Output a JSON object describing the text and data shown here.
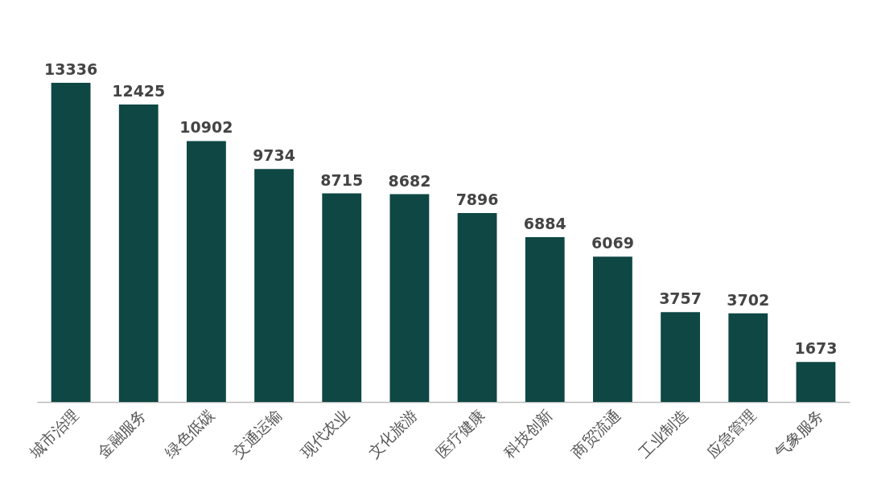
{
  "chart_data": {
    "type": "bar",
    "categories": [
      "城市治理",
      "金融服务",
      "绿色低碳",
      "交通运输",
      "现代农业",
      "文化旅游",
      "医疗健康",
      "科技创新",
      "商贸流通",
      "工业制造",
      "应急管理",
      "气象服务"
    ],
    "values": [
      13336,
      12425,
      10902,
      9734,
      8715,
      8682,
      7896,
      6884,
      6069,
      3757,
      3702,
      1673
    ],
    "color": "#0e4744",
    "data_labels": true
  }
}
